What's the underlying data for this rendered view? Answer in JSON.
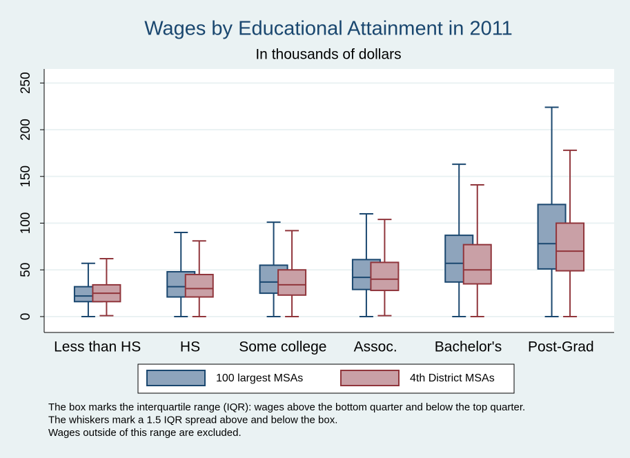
{
  "chart_data": {
    "type": "box",
    "title": "Wages by Educational Attainment in 2011",
    "subtitle": "In thousands of dollars",
    "categories": [
      "Less than HS",
      "HS",
      "Some college",
      "Assoc.",
      "Bachelor's",
      "Post-Grad"
    ],
    "series": [
      {
        "name": "100 largest MSAs",
        "color": "#8ea4bc",
        "stroke": "#1a476f",
        "low": [
          0,
          0,
          0,
          0,
          0,
          0
        ],
        "q1": [
          16,
          21,
          25,
          29,
          37,
          51
        ],
        "median": [
          22,
          32,
          37,
          42,
          57,
          78
        ],
        "q3": [
          32,
          48,
          55,
          61,
          87,
          120
        ],
        "high": [
          57,
          90,
          101,
          110,
          163,
          224
        ]
      },
      {
        "name": "4th District MSAs",
        "color": "#c9a0a6",
        "stroke": "#90353b",
        "low": [
          1,
          0,
          0,
          1,
          0,
          0
        ],
        "q1": [
          16,
          21,
          23,
          28,
          35,
          49
        ],
        "median": [
          25,
          30,
          34,
          40,
          50,
          70
        ],
        "q3": [
          34,
          45,
          50,
          58,
          77,
          100
        ],
        "high": [
          62,
          81,
          92,
          104,
          141,
          178
        ]
      }
    ],
    "ylim": [
      -17,
      265
    ],
    "yticks": [
      0,
      50,
      100,
      150,
      200,
      250
    ],
    "grid": true,
    "legend": "bottom",
    "notes": [
      "The box marks the interquartile range (IQR): wages above the bottom quarter and below the top quarter.",
      "The whiskers mark a 1.5 IQR spread above and below the box.",
      "Wages outside of this range are excluded."
    ]
  }
}
